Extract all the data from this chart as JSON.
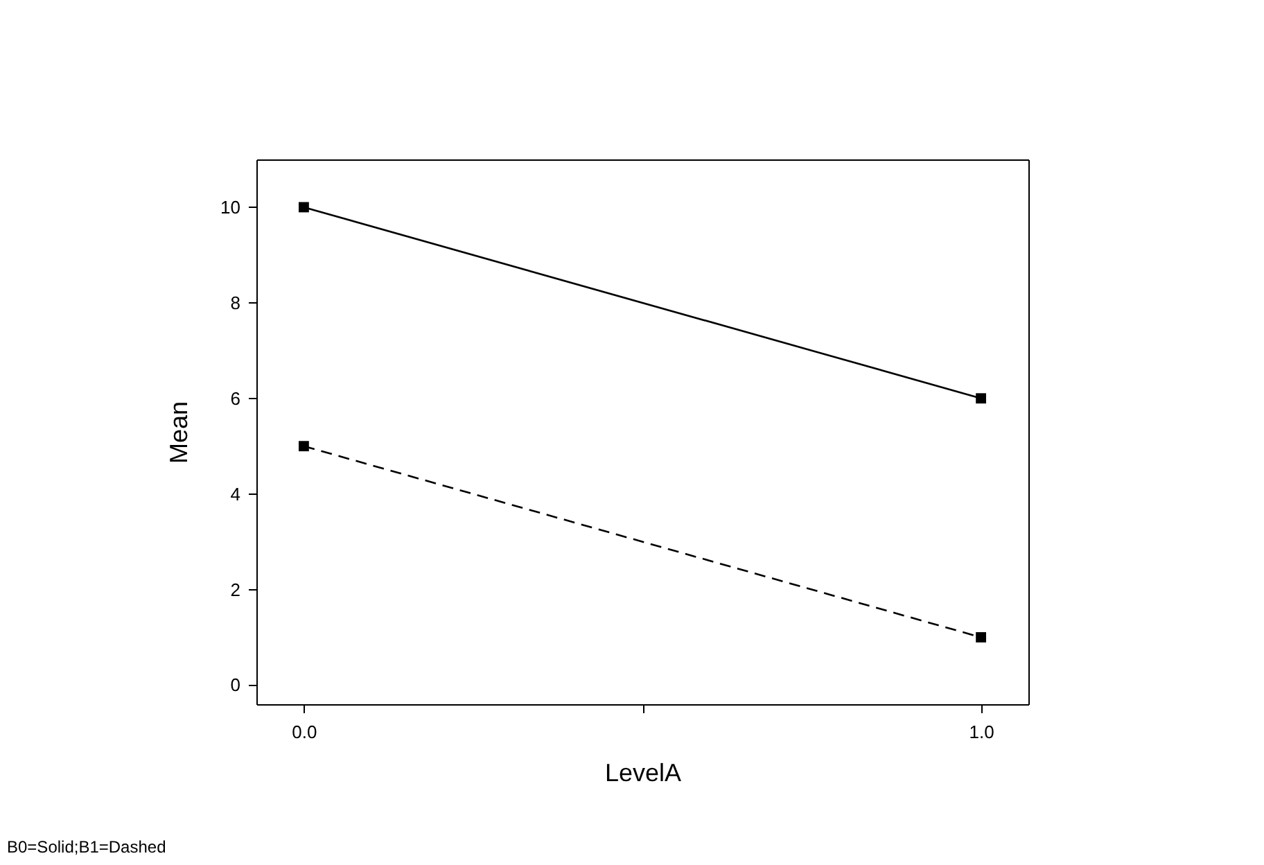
{
  "chart_data": {
    "type": "line",
    "xlabel": "LevelA",
    "ylabel": "Mean",
    "x": [
      0,
      1
    ],
    "series": [
      {
        "color": "#000000",
        "values": [
          10,
          6
        ],
        "line_style": "solid"
      },
      {
        "color": "#000000",
        "values": [
          5,
          1
        ],
        "line_style": "dashed"
      }
    ],
    "xlim": [
      -0.07,
      1.07
    ],
    "xticks": [
      {
        "value": 0,
        "label": "0.0"
      },
      {
        "value": 0.5,
        "label": null
      },
      {
        "value": 1,
        "label": "1.0"
      }
    ],
    "ylim": [
      -0.4,
      11
    ],
    "yticks": [
      0,
      2,
      4,
      6,
      8,
      10
    ],
    "marker": "square",
    "grid": false,
    "legend": false,
    "annotations": [
      "B0=Solid;B1=Dashed"
    ]
  }
}
